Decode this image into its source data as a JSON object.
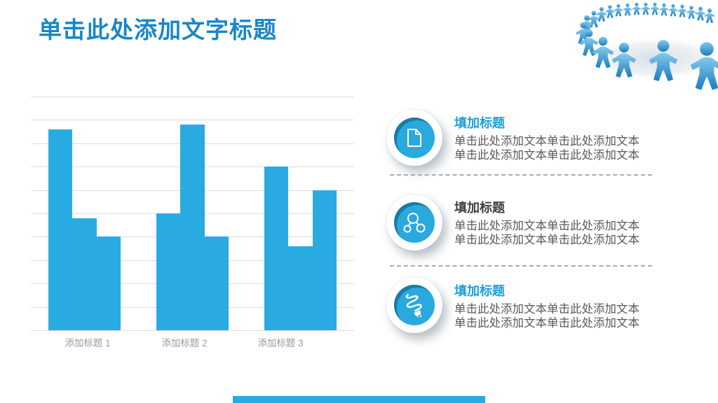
{
  "slide": {
    "title": "单击此处添加文字标题",
    "title_color": "#1787C8",
    "background": "#FFFFFF",
    "footer_bar_color": "#29ABE2",
    "illustration": "people-holding-hands-circle"
  },
  "chart_data": {
    "type": "bar",
    "title": "",
    "xlabel": "",
    "ylabel": "",
    "categories": [
      "添加标题 1",
      "添加标题 2",
      "添加标题 3"
    ],
    "series": [
      {
        "values": [
          8.6,
          5.0,
          7.0
        ]
      },
      {
        "values": [
          4.8,
          8.8,
          3.6
        ]
      },
      {
        "values": [
          4.0,
          4.0,
          6.0
        ]
      }
    ],
    "ylim": [
      0,
      10
    ],
    "gridline_step": 1,
    "grid": true,
    "legend": "none",
    "bar_color": "#29ABE2",
    "gridline_color": "#DCDCDC",
    "category_label_color": "#9A9A9A"
  },
  "items": [
    {
      "icon": "document-icon",
      "title": "填加标题",
      "title_color": "#1A9FDB",
      "body_line1": "单击此处添加文本单击此处添加文本",
      "body_line2": "单击此处添加文本单击此处添加文本"
    },
    {
      "icon": "molecule-icon",
      "title": "填加标题",
      "title_color": "#404040",
      "body_line1": "单击此处添加文本单击此处添加文本",
      "body_line2": "单击此处添加文本单击此处添加文本"
    },
    {
      "icon": "bulb-icon",
      "title": "填加标题",
      "title_color": "#1A9FDB",
      "body_line1": "单击此处添加文本单击此处添加文本",
      "body_line2": "单击此处添加文本单击此处添加文本"
    }
  ],
  "badge": {
    "circle_color": "#29A9DE",
    "ring_shadow_color": "#125478",
    "icon_color": "#FFFFFF"
  }
}
